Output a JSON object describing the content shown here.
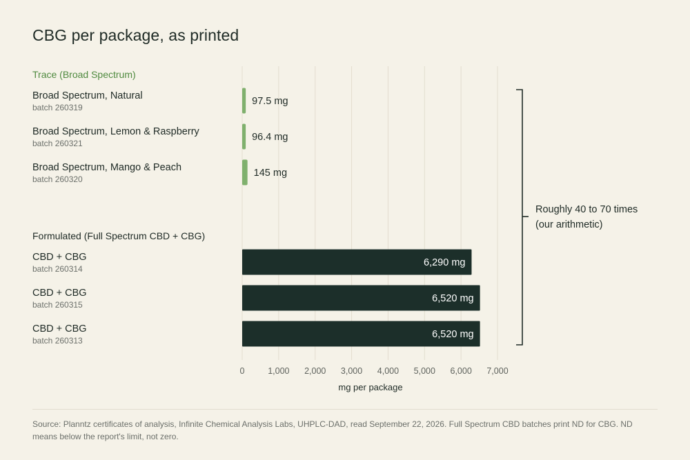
{
  "title": "CBG per package, as printed",
  "groups": [
    {
      "label": "Trace (Broad Spectrum)",
      "rows": [
        {
          "name": "Broad Spectrum, Natural",
          "batch": "batch 260319",
          "value": 97.5,
          "value_label": "97.5 mg"
        },
        {
          "name": "Broad Spectrum, Lemon & Raspberry",
          "batch": "batch 260321",
          "value": 96.4,
          "value_label": "96.4 mg"
        },
        {
          "name": "Broad Spectrum, Mango & Peach",
          "batch": "batch 260320",
          "value": 145,
          "value_label": "145 mg"
        }
      ]
    },
    {
      "label": "Formulated (Full Spectrum CBD + CBG)",
      "rows": [
        {
          "name": "CBD + CBG",
          "batch": "batch 260314",
          "value": 6290,
          "value_label": "6,290 mg"
        },
        {
          "name": "CBD + CBG",
          "batch": "batch 260315",
          "value": 6520,
          "value_label": "6,520 mg"
        },
        {
          "name": "CBD + CBG",
          "batch": "batch 260313",
          "value": 6520,
          "value_label": "6,520 mg"
        }
      ]
    }
  ],
  "chart_data": {
    "type": "bar",
    "orientation": "horizontal",
    "title": "CBG per package, as printed",
    "xlabel": "mg per package",
    "ylabel": "",
    "xlim": [
      0,
      7000
    ],
    "xticks": [
      0,
      1000,
      2000,
      3000,
      4000,
      5000,
      6000,
      7000
    ],
    "xtick_labels": [
      "0",
      "1,000",
      "2,000",
      "3,000",
      "4,000",
      "5,000",
      "6,000",
      "7,000"
    ],
    "grid": "vertical",
    "categories": [
      "Broad Spectrum, Natural (batch 260319)",
      "Broad Spectrum, Lemon & Raspberry (batch 260321)",
      "Broad Spectrum, Mango & Peach (batch 260320)",
      "CBD + CBG (batch 260314)",
      "CBD + CBG (batch 260315)",
      "CBD + CBG (batch 260313)"
    ],
    "values": [
      97.5,
      96.4,
      145,
      6290,
      6520,
      6520
    ],
    "annotation": "Roughly 40 to 70 times (our arithmetic)"
  },
  "annotation": {
    "line1": "Roughly 40 to 70 times",
    "line2": "(our arithmetic)"
  },
  "source": "Source: Planntz certificates of analysis, Infinite Chemical Analysis Labs, UHPLC-DAD, read September 22, 2026. Full Spectrum CBD batches print ND for CBG. ND means below the report's limit, not zero.",
  "colors": {
    "trace_bar": "#7fb06d",
    "formulated_bar": "#1c2f2a",
    "trace_label": "#4f8a3f",
    "grid": "#e2ddcf",
    "background": "#f5f2e8"
  }
}
